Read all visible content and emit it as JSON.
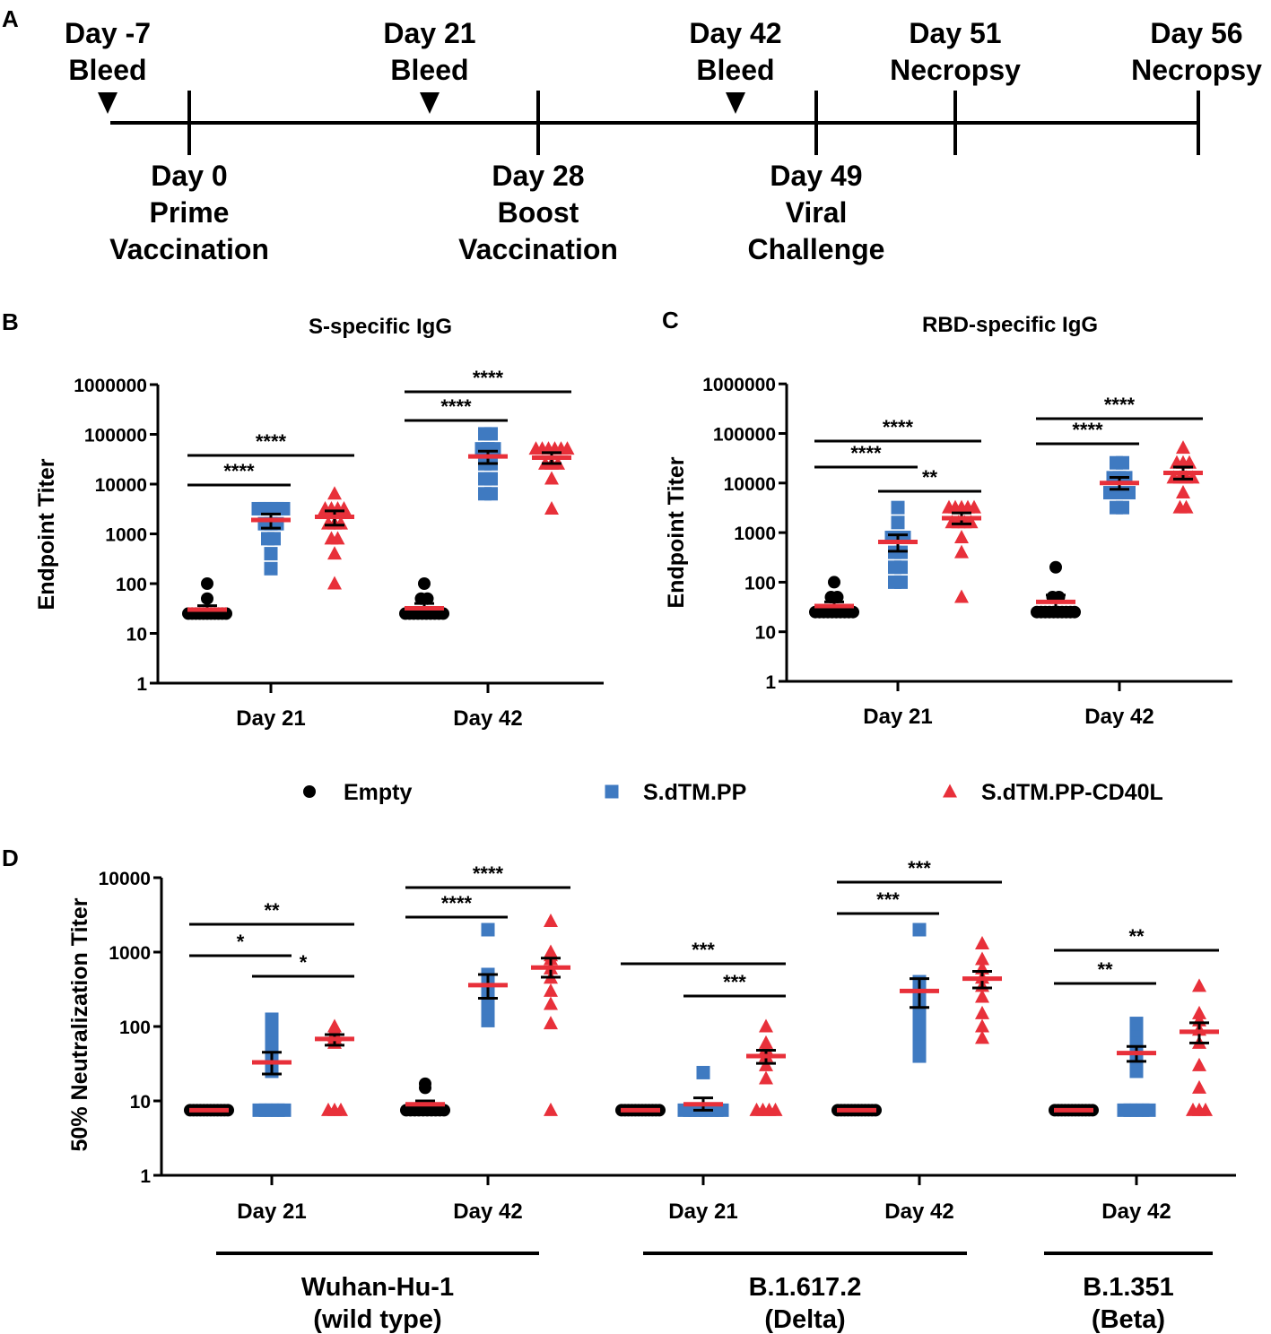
{
  "colors": {
    "empty": "#000000",
    "sdtm": "#3f7ac1",
    "cd40l": "#e8303a",
    "mean": "#e8303a",
    "axis": "#000000"
  },
  "panel_labels": {
    "a": "A",
    "b": "B",
    "c": "C",
    "d": "D"
  },
  "timeline": {
    "events": [
      {
        "day": "Day -7",
        "event": "Bleed",
        "kind": "bleed"
      },
      {
        "day": "Day 0",
        "lines": [
          "Prime",
          "Vaccination"
        ],
        "kind": "tick"
      },
      {
        "day": "Day 21",
        "event": "Bleed",
        "kind": "bleed"
      },
      {
        "day": "Day 28",
        "lines": [
          "Boost",
          "Vaccination"
        ],
        "kind": "tick"
      },
      {
        "day": "Day 42",
        "event": "Bleed",
        "kind": "bleed"
      },
      {
        "day": "Day 49",
        "lines": [
          "Viral",
          "Challenge"
        ],
        "kind": "tick"
      },
      {
        "day": "Day 51",
        "event": "Necropsy",
        "kind": "tick-top"
      },
      {
        "day": "Day 56",
        "event": "Necropsy",
        "kind": "tick-top"
      }
    ]
  },
  "legend": {
    "items": [
      {
        "label": "Empty",
        "marker": "circle",
        "color": "#000000"
      },
      {
        "label": "S.dTM.PP",
        "marker": "square",
        "color": "#3f7ac1"
      },
      {
        "label": "S.dTM.PP-CD40L",
        "marker": "triangle",
        "color": "#e8303a"
      }
    ]
  },
  "chart_data": [
    {
      "panel": "B",
      "type": "scatter",
      "title": "S-specific IgG",
      "ylabel": "Endpoint Titer",
      "yscale": "log",
      "ylim": [
        1,
        1000000
      ],
      "ytick_labels": [
        "1",
        "10",
        "100",
        "1000",
        "10000",
        "100000",
        "1000000"
      ],
      "categories": [
        "Day 21",
        "Day 42"
      ],
      "series": [
        {
          "name": "Empty",
          "values": [
            [
              25,
              25,
              25,
              25,
              25,
              25,
              25,
              25,
              25,
              25,
              25,
              50,
              100
            ],
            [
              25,
              25,
              25,
              25,
              25,
              25,
              25,
              25,
              25,
              25,
              50,
              50,
              100
            ]
          ],
          "mean": [
            30,
            32
          ],
          "sem_lo": [
            25,
            27
          ],
          "sem_hi": [
            36,
            40
          ]
        },
        {
          "name": "S.dTM.PP",
          "values": [
            [
              200,
              400,
              800,
              800,
              1600,
              1600,
              1600,
              3200,
              3200,
              3200,
              3200,
              3200
            ],
            [
              6400,
              6400,
              12800,
              12800,
              25600,
              25600,
              51200,
              51200,
              51200,
              102400,
              102400
            ]
          ],
          "mean": [
            1900,
            36000
          ],
          "sem_lo": [
            1300,
            26000
          ],
          "sem_hi": [
            2500,
            46000
          ]
        },
        {
          "name": "S.dTM.PP-CD40L",
          "values": [
            [
              100,
              400,
              800,
              800,
              1600,
              1600,
              1600,
              3200,
              3200,
              3200,
              3200,
              6400
            ],
            [
              3200,
              12800,
              25600,
              25600,
              25600,
              51200,
              51200,
              51200,
              51200,
              51200,
              51200
            ]
          ],
          "mean": [
            2200,
            34000
          ],
          "sem_lo": [
            1500,
            26000
          ],
          "sem_hi": [
            2900,
            43000
          ]
        }
      ],
      "significance": [
        {
          "category": "Day 21",
          "from": "Empty",
          "to": "S.dTM.PP",
          "label": "****"
        },
        {
          "category": "Day 21",
          "from": "Empty",
          "to": "S.dTM.PP-CD40L",
          "label": "****"
        },
        {
          "category": "Day 42",
          "from": "Empty",
          "to": "S.dTM.PP",
          "label": "****"
        },
        {
          "category": "Day 42",
          "from": "Empty",
          "to": "S.dTM.PP-CD40L",
          "label": "****"
        }
      ]
    },
    {
      "panel": "C",
      "type": "scatter",
      "title": "RBD-specific IgG",
      "ylabel": "Endpoint Titer",
      "yscale": "log",
      "ylim": [
        1,
        1000000
      ],
      "ytick_labels": [
        "1",
        "10",
        "100",
        "1000",
        "10000",
        "100000",
        "1000000"
      ],
      "categories": [
        "Day 21",
        "Day 42"
      ],
      "series": [
        {
          "name": "Empty",
          "values": [
            [
              25,
              25,
              25,
              25,
              25,
              25,
              25,
              25,
              25,
              25,
              50,
              50,
              100
            ],
            [
              25,
              25,
              25,
              25,
              25,
              25,
              25,
              25,
              25,
              25,
              50,
              50,
              200
            ]
          ],
          "mean": [
            33,
            40
          ],
          "sem_lo": [
            27,
            30
          ],
          "sem_hi": [
            40,
            55
          ]
        },
        {
          "name": "S.dTM.PP",
          "values": [
            [
              100,
              100,
              200,
              200,
              400,
              400,
              800,
              800,
              800,
              1600,
              3200
            ],
            [
              3200,
              3200,
              6400,
              6400,
              6400,
              6400,
              12800,
              12800,
              12800,
              25600,
              25600
            ]
          ],
          "mean": [
            650,
            10000
          ],
          "sem_lo": [
            420,
            7500
          ],
          "sem_hi": [
            900,
            13000
          ]
        },
        {
          "name": "S.dTM.PP-CD40L",
          "values": [
            [
              50,
              400,
              800,
              1600,
              1600,
              1600,
              1600,
              3200,
              3200,
              3200,
              3200,
              3200
            ],
            [
              3200,
              3200,
              6400,
              12800,
              12800,
              12800,
              12800,
              25600,
              25600,
              25600,
              51200
            ]
          ],
          "mean": [
            1950,
            16000
          ],
          "sem_lo": [
            1500,
            12000
          ],
          "sem_hi": [
            2500,
            21000
          ]
        }
      ],
      "significance": [
        {
          "category": "Day 21",
          "from": "Empty",
          "to": "S.dTM.PP",
          "label": "****"
        },
        {
          "category": "Day 21",
          "from": "Empty",
          "to": "S.dTM.PP-CD40L",
          "label": "****"
        },
        {
          "category": "Day 21",
          "from": "S.dTM.PP",
          "to": "S.dTM.PP-CD40L",
          "label": "**"
        },
        {
          "category": "Day 42",
          "from": "Empty",
          "to": "S.dTM.PP",
          "label": "****"
        },
        {
          "category": "Day 42",
          "from": "Empty",
          "to": "S.dTM.PP-CD40L",
          "label": "****"
        }
      ]
    },
    {
      "panel": "D",
      "type": "scatter",
      "title": "",
      "ylabel": "50% Neutralization Titer",
      "yscale": "log",
      "ylim": [
        1,
        10000
      ],
      "ytick_labels": [
        "1",
        "10",
        "100",
        "1000",
        "10000"
      ],
      "categories": [
        "Day 21",
        "Day 42",
        "Day 21",
        "Day 42",
        "Day 42"
      ],
      "variant_groups": [
        {
          "line1": "Wuhan-Hu-1",
          "line2": "(wild type)",
          "from": 0,
          "to": 1
        },
        {
          "line1": "B.1.617.2",
          "line2": "(Delta)",
          "from": 2,
          "to": 3
        },
        {
          "line1": "B.1.351",
          "line2": "(Beta)",
          "from": 4,
          "to": 4
        }
      ],
      "series": [
        {
          "name": "Empty",
          "values": [
            [
              7.5,
              7.5,
              7.5,
              7.5,
              7.5,
              7.5,
              7.5,
              7.5,
              7.5,
              7.5,
              7.5,
              7.5
            ],
            [
              7.5,
              7.5,
              7.5,
              7.5,
              7.5,
              7.5,
              7.5,
              7.5,
              7.5,
              7.5,
              15,
              17
            ],
            [
              7.5,
              7.5,
              7.5,
              7.5,
              7.5,
              7.5,
              7.5,
              7.5,
              7.5,
              7.5,
              7.5,
              7.5
            ],
            [
              7.5,
              7.5,
              7.5,
              7.5,
              7.5,
              7.5,
              7.5,
              7.5,
              7.5,
              7.5,
              7.5,
              7.5
            ],
            [
              7.5,
              7.5,
              7.5,
              7.5,
              7.5,
              7.5,
              7.5,
              7.5,
              7.5,
              7.5,
              7.5,
              7.5
            ]
          ],
          "mean": [
            7.5,
            9,
            7.5,
            7.5,
            7.5
          ],
          "sem_lo": [
            7.5,
            8,
            7.5,
            7.5,
            7.5
          ],
          "sem_hi": [
            7.5,
            10,
            7.5,
            7.5,
            7.5
          ]
        },
        {
          "name": "S.dTM.PP",
          "values": [
            [
              7.5,
              7.5,
              7.5,
              7.5,
              7.5,
              25,
              40,
              60,
              90,
              125
            ],
            [
              120,
              140,
              180,
              220,
              260,
              300,
              350,
              400,
              500,
              2000
            ],
            [
              7.5,
              7.5,
              7.5,
              7.5,
              7.5,
              7.5,
              7.5,
              7.5,
              24
            ],
            [
              40,
              60,
              80,
              100,
              150,
              200,
              250,
              300,
              400,
              2000
            ],
            [
              7.5,
              7.5,
              7.5,
              7.5,
              7.5,
              25,
              35,
              50,
              70,
              90,
              110
            ]
          ],
          "mean": [
            33,
            360,
            9,
            300,
            44
          ],
          "sem_lo": [
            23,
            240,
            7.5,
            180,
            34
          ],
          "sem_hi": [
            45,
            500,
            11,
            440,
            54
          ]
        },
        {
          "name": "S.dTM.PP-CD40L",
          "values": [
            [
              7.5,
              7.5,
              7.5,
              60,
              70,
              75,
              80,
              90,
              100
            ],
            [
              7.5,
              110,
              200,
              300,
              450,
              600,
              800,
              900,
              1000,
              2600
            ],
            [
              7.5,
              7.5,
              7.5,
              7.5,
              20,
              30,
              40,
              50,
              60,
              100
            ],
            [
              70,
              100,
              150,
              250,
              350,
              450,
              600,
              800,
              1300
            ],
            [
              7.5,
              7.5,
              7.5,
              15,
              30,
              60,
              90,
              120,
              150,
              350
            ]
          ],
          "mean": [
            68,
            620,
            40,
            440,
            85
          ],
          "sem_lo": [
            56,
            460,
            32,
            330,
            60
          ],
          "sem_hi": [
            78,
            830,
            48,
            550,
            112
          ]
        }
      ],
      "significance": [
        {
          "category_index": 0,
          "from": "Empty",
          "to": "S.dTM.PP",
          "label": "*"
        },
        {
          "category_index": 0,
          "from": "Empty",
          "to": "S.dTM.PP-CD40L",
          "label": "**"
        },
        {
          "category_index": 0,
          "from": "S.dTM.PP",
          "to": "S.dTM.PP-CD40L",
          "label": "*"
        },
        {
          "category_index": 1,
          "from": "Empty",
          "to": "S.dTM.PP",
          "label": "****"
        },
        {
          "category_index": 1,
          "from": "Empty",
          "to": "S.dTM.PP-CD40L",
          "label": "****"
        },
        {
          "category_index": 2,
          "from": "Empty",
          "to": "S.dTM.PP-CD40L",
          "label": "***"
        },
        {
          "category_index": 2,
          "from": "S.dTM.PP",
          "to": "S.dTM.PP-CD40L",
          "label": "***"
        },
        {
          "category_index": 3,
          "from": "Empty",
          "to": "S.dTM.PP",
          "label": "***"
        },
        {
          "category_index": 3,
          "from": "Empty",
          "to": "S.dTM.PP-CD40L",
          "label": "***"
        },
        {
          "category_index": 4,
          "from": "Empty",
          "to": "S.dTM.PP",
          "label": "**"
        },
        {
          "category_index": 4,
          "from": "Empty",
          "to": "S.dTM.PP-CD40L",
          "label": "**"
        }
      ]
    }
  ]
}
